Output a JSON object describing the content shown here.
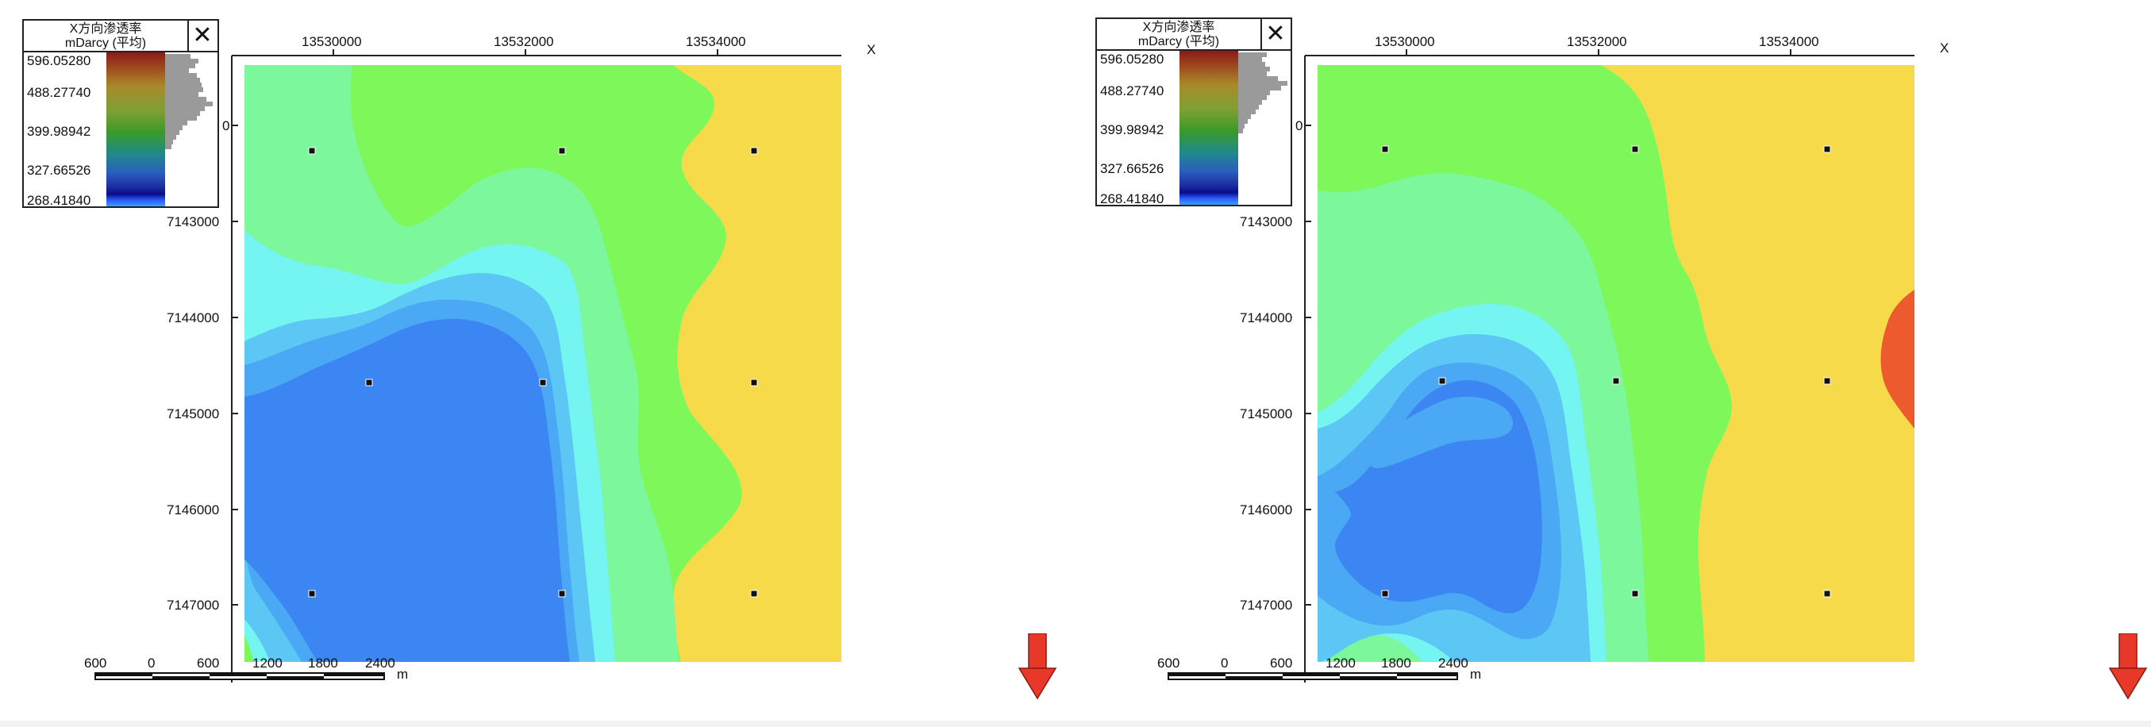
{
  "colors": {
    "blue_deep": "#3b86f2",
    "blue": "#4aa8f5",
    "blue_light": "#5cc6f5",
    "cyan": "#74f5f2",
    "mint": "#7cf79b",
    "green": "#7ef75a",
    "yellow": "#f7da4a",
    "orange": "#ec5a2e",
    "well": "#111111",
    "arrow": "#e8382a"
  },
  "panels": [
    {
      "legend": {
        "title_line1": "X方向渗透率",
        "title_line2": "mDarcy (平均)",
        "close_icon": "✕",
        "ticks": [
          "596.05280",
          "488.27740",
          "399.98942",
          "327.66526",
          "268.41840"
        ]
      },
      "x_axis": {
        "label": "X",
        "ticks": [
          "13530000",
          "13532000",
          "13534000"
        ]
      },
      "y_axis": {
        "ticks": [
          "7143000",
          "7144000",
          "7145000",
          "7146000",
          "7147000"
        ],
        "partial_tick": "0"
      },
      "scale_bar": {
        "labels": [
          "600",
          "0",
          "600",
          "1200",
          "1800",
          "2400"
        ],
        "unit": "m"
      },
      "arrow_icon": "down-arrow-icon"
    },
    {
      "legend": {
        "title_line1": "X方向渗透率",
        "title_line2": "mDarcy (平均)",
        "close_icon": "✕",
        "ticks": [
          "596.05280",
          "488.27740",
          "399.98942",
          "327.66526",
          "268.41840"
        ]
      },
      "x_axis": {
        "label": "X",
        "ticks": [
          "13530000",
          "13532000",
          "13534000"
        ]
      },
      "y_axis": {
        "ticks": [
          "7143000",
          "7144000",
          "7145000",
          "7146000",
          "7147000"
        ],
        "partial_tick": "0"
      },
      "scale_bar": {
        "labels": [
          "600",
          "0",
          "600",
          "1200",
          "1800",
          "2400"
        ],
        "unit": "m"
      },
      "arrow_icon": "down-arrow-icon"
    }
  ]
}
